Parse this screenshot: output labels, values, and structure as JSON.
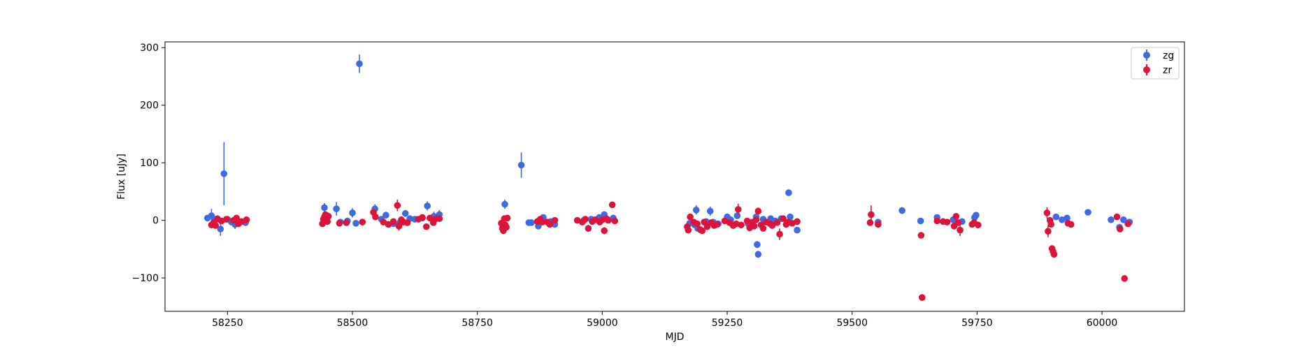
{
  "chart_data": {
    "type": "scatter",
    "title": "",
    "xlabel": "MJD",
    "ylabel": "Flux [uJy]",
    "xlim": [
      58125,
      60165
    ],
    "ylim": [
      -158,
      310
    ],
    "xticks": [
      58250,
      58500,
      58750,
      59000,
      59250,
      59500,
      59750,
      60000
    ],
    "yticks": [
      -100,
      0,
      100,
      200,
      300
    ],
    "grid": false,
    "legend_position": "top-right",
    "error_bars": true,
    "series": [
      {
        "name": "zg",
        "color": "#4169e1",
        "points": [
          [
            58210,
            4,
            4
          ],
          [
            58218,
            8,
            12
          ],
          [
            58224,
            2,
            4
          ],
          [
            58230,
            3,
            4
          ],
          [
            58236,
            -15,
            12
          ],
          [
            58243,
            81,
            55
          ],
          [
            58250,
            2,
            4
          ],
          [
            58258,
            -3,
            4
          ],
          [
            58265,
            -7,
            8
          ],
          [
            58272,
            -2,
            5
          ],
          [
            58286,
            -4,
            4
          ],
          [
            58444,
            22,
            8
          ],
          [
            58450,
            8,
            5
          ],
          [
            58468,
            20,
            12
          ],
          [
            58476,
            -3,
            4
          ],
          [
            58490,
            -1,
            4
          ],
          [
            58500,
            13,
            8
          ],
          [
            58507,
            -5,
            5
          ],
          [
            58514,
            272,
            16
          ],
          [
            58545,
            20,
            8
          ],
          [
            58558,
            2,
            4
          ],
          [
            58567,
            9,
            6
          ],
          [
            58582,
            -6,
            4
          ],
          [
            58595,
            -4,
            6
          ],
          [
            58606,
            12,
            6
          ],
          [
            58615,
            3,
            4
          ],
          [
            58625,
            2,
            4
          ],
          [
            58640,
            4,
            4
          ],
          [
            58650,
            25,
            8
          ],
          [
            58663,
            7,
            8
          ],
          [
            58674,
            10,
            8
          ],
          [
            58805,
            28,
            8
          ],
          [
            58838,
            96,
            22
          ],
          [
            58853,
            -4,
            4
          ],
          [
            58858,
            -4,
            4
          ],
          [
            58872,
            -10,
            5
          ],
          [
            58882,
            5,
            5
          ],
          [
            58897,
            -2,
            4
          ],
          [
            58905,
            -7,
            4
          ],
          [
            58963,
            0,
            4
          ],
          [
            58978,
            2,
            4
          ],
          [
            58994,
            5,
            4
          ],
          [
            59004,
            10,
            5
          ],
          [
            59010,
            2,
            4
          ],
          [
            59022,
            4,
            4
          ],
          [
            59175,
            -5,
            4
          ],
          [
            59185,
            -8,
            4
          ],
          [
            59188,
            18,
            8
          ],
          [
            59191,
            -14,
            5
          ],
          [
            59208,
            -2,
            4
          ],
          [
            59216,
            16,
            8
          ],
          [
            59222,
            -3,
            4
          ],
          [
            59232,
            -6,
            4
          ],
          [
            59250,
            6,
            4
          ],
          [
            59257,
            1,
            4
          ],
          [
            59270,
            8,
            5
          ],
          [
            59292,
            -6,
            4
          ],
          [
            59300,
            -3,
            4
          ],
          [
            59308,
            6,
            4
          ],
          [
            59310,
            -42,
            6
          ],
          [
            59312,
            -59,
            6
          ],
          [
            59322,
            2,
            4
          ],
          [
            59337,
            3,
            4
          ],
          [
            59346,
            -1,
            4
          ],
          [
            59358,
            3,
            4
          ],
          [
            59373,
            48,
            5
          ],
          [
            59376,
            6,
            4
          ],
          [
            59390,
            -17,
            5
          ],
          [
            59552,
            -3,
            4
          ],
          [
            59600,
            17,
            6
          ],
          [
            59637,
            -1,
            4
          ],
          [
            59670,
            5,
            4
          ],
          [
            59702,
            1,
            4
          ],
          [
            59720,
            -2,
            4
          ],
          [
            59745,
            5,
            4
          ],
          [
            59748,
            9,
            4
          ],
          [
            59908,
            6,
            4
          ],
          [
            59920,
            1,
            4
          ],
          [
            59930,
            4,
            4
          ],
          [
            59972,
            14,
            4
          ],
          [
            60018,
            1,
            4
          ],
          [
            60035,
            -12,
            4
          ],
          [
            60043,
            1,
            4
          ],
          [
            60055,
            -3,
            4
          ]
        ]
      },
      {
        "name": "zr",
        "color": "#dc143c",
        "points": [
          [
            58218,
            -8,
            4
          ],
          [
            58222,
            -4,
            4
          ],
          [
            58226,
            -9,
            4
          ],
          [
            58230,
            2,
            4
          ],
          [
            58238,
            -1,
            4
          ],
          [
            58248,
            2,
            4
          ],
          [
            58262,
            0,
            4
          ],
          [
            58268,
            4,
            4
          ],
          [
            58272,
            -6,
            4
          ],
          [
            58278,
            -2,
            4
          ],
          [
            58288,
            1,
            4
          ],
          [
            58440,
            -6,
            4
          ],
          [
            58442,
            2,
            4
          ],
          [
            58444,
            6,
            4
          ],
          [
            58446,
            10,
            6
          ],
          [
            58448,
            3,
            4
          ],
          [
            58450,
            -2,
            4
          ],
          [
            58452,
            7,
            5
          ],
          [
            58474,
            -5,
            4
          ],
          [
            58488,
            -4,
            4
          ],
          [
            58520,
            -3,
            4
          ],
          [
            58542,
            14,
            6
          ],
          [
            58546,
            6,
            5
          ],
          [
            58562,
            -3,
            4
          ],
          [
            58572,
            -7,
            4
          ],
          [
            58582,
            -2,
            4
          ],
          [
            58590,
            26,
            10
          ],
          [
            58593,
            -10,
            8
          ],
          [
            58598,
            1,
            5
          ],
          [
            58602,
            -3,
            5
          ],
          [
            58610,
            -4,
            4
          ],
          [
            58632,
            2,
            4
          ],
          [
            58640,
            5,
            4
          ],
          [
            58648,
            -11,
            5
          ],
          [
            58655,
            4,
            4
          ],
          [
            58662,
            -4,
            4
          ],
          [
            58668,
            3,
            4
          ],
          [
            58674,
            3,
            4
          ],
          [
            58798,
            -5,
            4
          ],
          [
            58800,
            -14,
            5
          ],
          [
            58802,
            -18,
            5
          ],
          [
            58804,
            3,
            5
          ],
          [
            58806,
            -8,
            5
          ],
          [
            58808,
            -12,
            5
          ],
          [
            58810,
            4,
            5
          ],
          [
            58870,
            -2,
            4
          ],
          [
            58876,
            2,
            4
          ],
          [
            58880,
            -3,
            4
          ],
          [
            58890,
            -3,
            4
          ],
          [
            58895,
            -7,
            4
          ],
          [
            58905,
            0,
            4
          ],
          [
            58950,
            0,
            4
          ],
          [
            58960,
            -3,
            4
          ],
          [
            58966,
            2,
            4
          ],
          [
            58972,
            -14,
            6
          ],
          [
            58980,
            -2,
            4
          ],
          [
            58986,
            1,
            4
          ],
          [
            58995,
            -3,
            4
          ],
          [
            59000,
            1,
            4
          ],
          [
            59004,
            -18,
            6
          ],
          [
            59008,
            3,
            4
          ],
          [
            59012,
            0,
            4
          ],
          [
            59020,
            27,
            5
          ],
          [
            59025,
            -1,
            4
          ],
          [
            59170,
            -11,
            6
          ],
          [
            59172,
            -17,
            5
          ],
          [
            59176,
            6,
            4
          ],
          [
            59183,
            -3,
            4
          ],
          [
            59190,
            -6,
            4
          ],
          [
            59196,
            -16,
            5
          ],
          [
            59200,
            -18,
            5
          ],
          [
            59204,
            -3,
            4
          ],
          [
            59210,
            -11,
            4
          ],
          [
            59218,
            -4,
            4
          ],
          [
            59224,
            -9,
            4
          ],
          [
            59230,
            -7,
            4
          ],
          [
            59245,
            -1,
            4
          ],
          [
            59255,
            -4,
            4
          ],
          [
            59262,
            -9,
            4
          ],
          [
            59268,
            -6,
            4
          ],
          [
            59272,
            19,
            10
          ],
          [
            59278,
            -8,
            4
          ],
          [
            59290,
            -1,
            4
          ],
          [
            59295,
            -13,
            5
          ],
          [
            59300,
            -4,
            4
          ],
          [
            59304,
            -10,
            5
          ],
          [
            59308,
            1,
            4
          ],
          [
            59312,
            16,
            6
          ],
          [
            59318,
            -8,
            4
          ],
          [
            59322,
            -14,
            5
          ],
          [
            59328,
            -3,
            4
          ],
          [
            59336,
            -6,
            4
          ],
          [
            59340,
            -9,
            4
          ],
          [
            59350,
            -4,
            4
          ],
          [
            59355,
            -24,
            10
          ],
          [
            59362,
            3,
            5
          ],
          [
            59368,
            -7,
            4
          ],
          [
            59372,
            -3,
            4
          ],
          [
            59380,
            -5,
            4
          ],
          [
            59390,
            -2,
            4
          ],
          [
            59536,
            -4,
            4
          ],
          [
            59538,
            10,
            16
          ],
          [
            59552,
            -7,
            4
          ],
          [
            59638,
            -26,
            4
          ],
          [
            59640,
            -134,
            4
          ],
          [
            59670,
            -1,
            4
          ],
          [
            59682,
            -2,
            4
          ],
          [
            59690,
            -3,
            4
          ],
          [
            59704,
            -10,
            4
          ],
          [
            59708,
            7,
            4
          ],
          [
            59712,
            -4,
            4
          ],
          [
            59716,
            -17,
            10
          ],
          [
            59740,
            -7,
            4
          ],
          [
            59744,
            -4,
            4
          ],
          [
            59752,
            -8,
            4
          ],
          [
            59890,
            13,
            10
          ],
          [
            59892,
            -19,
            10
          ],
          [
            59896,
            0,
            5
          ],
          [
            59898,
            -7,
            4
          ],
          [
            59900,
            -49,
            4
          ],
          [
            59902,
            -54,
            4
          ],
          [
            59904,
            -59,
            4
          ],
          [
            59932,
            -5,
            4
          ],
          [
            59938,
            -7,
            4
          ],
          [
            60030,
            6,
            4
          ],
          [
            60036,
            -15,
            5
          ],
          [
            60045,
            -101,
            4
          ],
          [
            60052,
            -6,
            4
          ]
        ]
      }
    ]
  }
}
